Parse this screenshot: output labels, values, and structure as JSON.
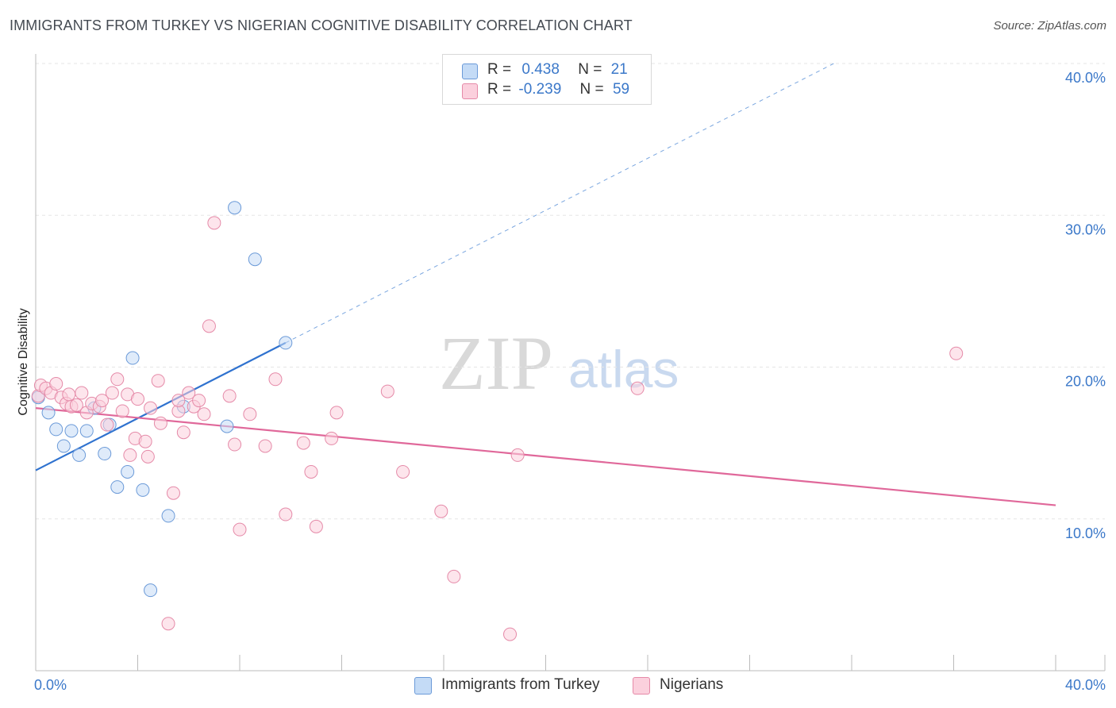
{
  "title": "IMMIGRANTS FROM TURKEY VS NIGERIAN COGNITIVE DISABILITY CORRELATION CHART",
  "source": "Source: ZipAtlas.com",
  "watermark": {
    "zip": "ZIP",
    "atlas": "atlas"
  },
  "legend": {
    "rows": [
      {
        "r_label": "R =",
        "r_value": "0.438",
        "n_label": "N =",
        "n_value": "21",
        "color": "#a9c8f0",
        "border": "#6b9ad8"
      },
      {
        "r_label": "R =",
        "r_value": "-0.239",
        "n_label": "N =",
        "n_value": "59",
        "color": "#f7b8cc",
        "border": "#e58aa8"
      }
    ]
  },
  "bottom_legend": [
    {
      "label": "Immigrants from Turkey",
      "color": "#c4dbf6",
      "border": "#6b9ad8"
    },
    {
      "label": "Nigerians",
      "color": "#fbd0dd",
      "border": "#e58aa8"
    }
  ],
  "chart_data": {
    "type": "scatter",
    "xlabel": "",
    "ylabel": "Cognitive Disability",
    "xlim": [
      0,
      40
    ],
    "ylim": [
      0,
      40
    ],
    "x_tick_labels": [
      "0.0%",
      "40.0%"
    ],
    "y_ticks": [
      10,
      20,
      30,
      40
    ],
    "y_tick_labels": [
      "10.0%",
      "20.0%",
      "30.0%",
      "40.0%"
    ],
    "grid": true,
    "series": [
      {
        "name": "Immigrants from Turkey",
        "color": "#6b9ad8",
        "fill": "#c4dbf6",
        "points": [
          [
            0.1,
            18.0
          ],
          [
            0.5,
            17.0
          ],
          [
            0.8,
            15.9
          ],
          [
            1.1,
            14.8
          ],
          [
            1.4,
            15.8
          ],
          [
            1.7,
            14.2
          ],
          [
            2.0,
            15.8
          ],
          [
            2.3,
            17.3
          ],
          [
            2.7,
            14.3
          ],
          [
            2.9,
            16.2
          ],
          [
            3.2,
            12.1
          ],
          [
            3.6,
            13.1
          ],
          [
            3.8,
            20.6
          ],
          [
            4.2,
            11.9
          ],
          [
            4.5,
            5.3
          ],
          [
            5.2,
            10.2
          ],
          [
            5.8,
            17.4
          ],
          [
            7.5,
            16.1
          ],
          [
            7.8,
            30.5
          ],
          [
            8.6,
            27.1
          ],
          [
            9.8,
            21.6
          ]
        ],
        "trend": {
          "x0": 0,
          "y0": 13.2,
          "x1": 9.8,
          "y1": 21.6,
          "dash_x1": 31.3,
          "dash_y1": 40.0
        }
      },
      {
        "name": "Nigerians",
        "color": "#e58aa8",
        "fill": "#fbd0dd",
        "points": [
          [
            0.1,
            18.1
          ],
          [
            0.2,
            18.8
          ],
          [
            0.4,
            18.6
          ],
          [
            0.6,
            18.3
          ],
          [
            0.8,
            18.9
          ],
          [
            1.0,
            18.0
          ],
          [
            1.2,
            17.6
          ],
          [
            1.4,
            17.4
          ],
          [
            1.6,
            17.5
          ],
          [
            1.8,
            18.3
          ],
          [
            2.0,
            17.0
          ],
          [
            2.2,
            17.6
          ],
          [
            2.5,
            17.4
          ],
          [
            2.6,
            17.8
          ],
          [
            3.0,
            18.3
          ],
          [
            3.2,
            19.2
          ],
          [
            3.4,
            17.1
          ],
          [
            3.6,
            18.2
          ],
          [
            3.7,
            14.2
          ],
          [
            3.9,
            15.3
          ],
          [
            4.0,
            17.9
          ],
          [
            4.3,
            15.1
          ],
          [
            4.4,
            14.1
          ],
          [
            4.5,
            17.3
          ],
          [
            4.8,
            19.1
          ],
          [
            4.9,
            16.3
          ],
          [
            5.2,
            3.1
          ],
          [
            5.4,
            11.7
          ],
          [
            5.6,
            17.1
          ],
          [
            5.8,
            15.7
          ],
          [
            6.0,
            18.3
          ],
          [
            6.2,
            17.4
          ],
          [
            6.4,
            17.8
          ],
          [
            6.6,
            16.9
          ],
          [
            6.8,
            22.7
          ],
          [
            7.0,
            29.5
          ],
          [
            7.6,
            18.1
          ],
          [
            7.8,
            14.9
          ],
          [
            8.0,
            9.3
          ],
          [
            8.4,
            16.9
          ],
          [
            9.0,
            14.8
          ],
          [
            9.4,
            19.2
          ],
          [
            9.8,
            10.3
          ],
          [
            10.5,
            15.0
          ],
          [
            10.8,
            13.1
          ],
          [
            11.0,
            9.5
          ],
          [
            11.6,
            15.3
          ],
          [
            11.8,
            17.0
          ],
          [
            13.8,
            18.4
          ],
          [
            14.4,
            13.1
          ],
          [
            15.9,
            10.5
          ],
          [
            16.4,
            6.2
          ],
          [
            18.6,
            2.4
          ],
          [
            18.9,
            14.2
          ],
          [
            23.6,
            18.6
          ],
          [
            36.1,
            20.9
          ],
          [
            1.3,
            18.2
          ],
          [
            2.8,
            16.2
          ],
          [
            5.6,
            17.8
          ]
        ],
        "trend": {
          "x0": 0,
          "y0": 17.3,
          "x1": 40,
          "y1": 10.9
        }
      }
    ]
  }
}
